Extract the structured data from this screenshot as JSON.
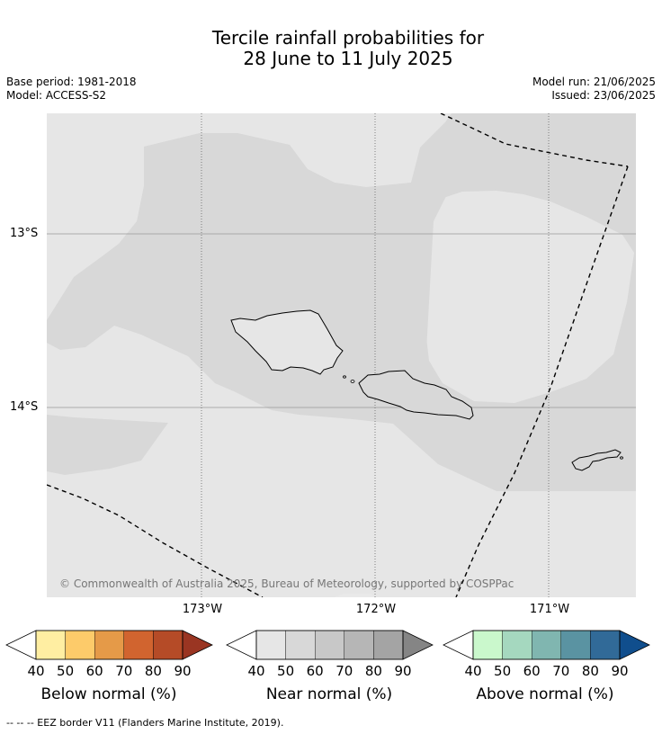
{
  "title_line1": "Tercile rainfall probabilities for",
  "title_line2": "28 June to 11 July 2025",
  "base_period": "Base period: 1981-2018",
  "model": "Model: ACCESS-S2",
  "model_run": "Model run: 21/06/2025",
  "issued": "Issued: 23/06/2025",
  "map": {
    "longitude_labels": [
      "173°W",
      "172°W",
      "171°W"
    ],
    "latitude_labels": [
      "13°S",
      "14°S"
    ],
    "copyright": "© Commonwealth of Australia 2025, Bureau of Meteorology, supported by COSPPac",
    "colors": {
      "background_near_normal_40_50": "#e6e6e6",
      "near_normal_50_60": "#d8d8d8",
      "coastline": "#000000",
      "eez_border": "#000000"
    }
  },
  "colorbars": [
    {
      "label": "Below normal (%)",
      "ticks": [
        "40",
        "50",
        "60",
        "70",
        "80",
        "90"
      ],
      "colors": [
        "#ffffff",
        "#ffeea2",
        "#fdcb6a",
        "#e59a48",
        "#d1642f",
        "#b54b27",
        "#9a3522"
      ]
    },
    {
      "label": "Near normal (%)",
      "ticks": [
        "40",
        "50",
        "60",
        "70",
        "80",
        "90"
      ],
      "colors": [
        "#ffffff",
        "#e6e6e6",
        "#d8d8d8",
        "#c8c8c8",
        "#b6b6b6",
        "#a4a4a4",
        "#858585"
      ]
    },
    {
      "label": "Above normal (%)",
      "ticks": [
        "40",
        "50",
        "60",
        "70",
        "80",
        "90"
      ],
      "colors": [
        "#ffffff",
        "#caf8cc",
        "#a5d8bf",
        "#80b6b0",
        "#5a93a2",
        "#316a98",
        "#104e8d"
      ]
    }
  ],
  "footnote": "--  --  -- EEZ border V11 (Flanders Marine Institute, 2019)."
}
